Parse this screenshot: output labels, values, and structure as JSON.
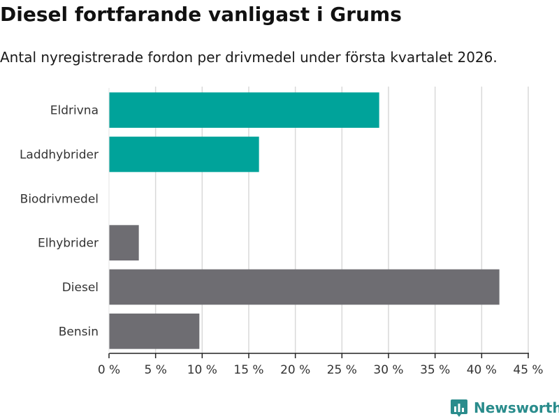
{
  "header": {
    "title": "Diesel fortfarande vanligast i Grums",
    "subtitle": "Antal nyregistrerade fordon per drivmedel under första kvartalet 2026."
  },
  "chart_data": {
    "type": "bar",
    "orientation": "horizontal",
    "categories": [
      "Eldrivna",
      "Laddhybrider",
      "Biodrivmedel",
      "Elhybrider",
      "Diesel",
      "Bensin"
    ],
    "values": [
      29,
      16.1,
      0,
      3.2,
      41.9,
      9.7
    ],
    "bar_colors": [
      "#00a39a",
      "#00a39a",
      "#00a39a",
      "#6e6d72",
      "#6e6d72",
      "#6e6d72"
    ],
    "xlim": [
      0,
      45
    ],
    "xticks": [
      0,
      5,
      10,
      15,
      20,
      25,
      30,
      35,
      40,
      45
    ],
    "tick_suffix": " %",
    "title": "Diesel fortfarande vanligast i Grums",
    "xlabel": "",
    "ylabel": "",
    "grid": true
  },
  "brand": {
    "name": "Newsworthy",
    "color": "#2a8c8c",
    "logo_icon": "bar-chart-pin-icon"
  }
}
